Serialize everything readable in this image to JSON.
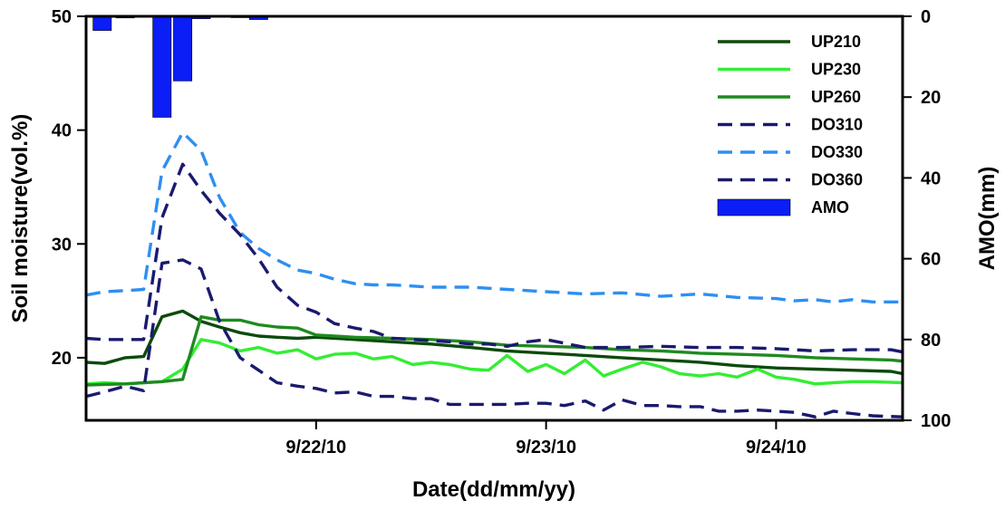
{
  "chart_data": {
    "type": "line",
    "title": "",
    "xlabel": "Date(dd/mm/yy)",
    "ylabel": "Soil moisture(vol.%)",
    "y2label": "AMO(mm)",
    "x_unit": "day",
    "xlim": [
      21.0,
      24.55
    ],
    "ylim": [
      14.5,
      50
    ],
    "y2lim": [
      0,
      100
    ],
    "y2_inverted": true,
    "x_ticks": [
      {
        "x": 22,
        "label": "9/22/10"
      },
      {
        "x": 23,
        "label": "9/23/10"
      },
      {
        "x": 24,
        "label": "9/24/10"
      }
    ],
    "y_ticks": [
      {
        "y": 20,
        "label": "20"
      },
      {
        "y": 30,
        "label": "30"
      },
      {
        "y": 40,
        "label": "40"
      },
      {
        "y": 50,
        "label": "50"
      }
    ],
    "y2_ticks": [
      {
        "y": 0,
        "label": "0"
      },
      {
        "y": 20,
        "label": "20"
      },
      {
        "y": 40,
        "label": "40"
      },
      {
        "y": 60,
        "label": "60"
      },
      {
        "y": 80,
        "label": "80"
      },
      {
        "y": 100,
        "label": "100"
      }
    ],
    "legend_position": "top-right",
    "grid": false,
    "series": [
      {
        "name": "UP210",
        "color": "#0d4a0d",
        "dash": "solid",
        "x": [
          21.0,
          21.08,
          21.17,
          21.25,
          21.33,
          21.42,
          21.5,
          21.58,
          21.67,
          21.75,
          21.83,
          21.92,
          22.0,
          22.17,
          22.33,
          22.5,
          22.67,
          22.83,
          23.0,
          23.17,
          23.33,
          23.5,
          23.67,
          23.83,
          24.0,
          24.17,
          24.33,
          24.5,
          24.55
        ],
        "y": [
          19.6,
          19.5,
          20.0,
          20.1,
          23.6,
          24.1,
          23.2,
          22.7,
          22.2,
          21.9,
          21.8,
          21.7,
          21.8,
          21.6,
          21.4,
          21.2,
          20.9,
          20.6,
          20.4,
          20.2,
          20.0,
          19.8,
          19.6,
          19.3,
          19.1,
          19.0,
          18.9,
          18.8,
          18.6
        ]
      },
      {
        "name": "UP230",
        "color": "#33ee33",
        "dash": "solid",
        "x": [
          21.0,
          21.08,
          21.17,
          21.25,
          21.33,
          21.42,
          21.5,
          21.58,
          21.67,
          21.75,
          21.83,
          21.92,
          22.0,
          22.08,
          22.17,
          22.25,
          22.33,
          22.42,
          22.5,
          22.58,
          22.67,
          22.75,
          22.83,
          22.92,
          23.0,
          23.08,
          23.17,
          23.25,
          23.33,
          23.42,
          23.5,
          23.58,
          23.67,
          23.75,
          23.83,
          23.92,
          24.0,
          24.08,
          24.17,
          24.25,
          24.33,
          24.42,
          24.55
        ],
        "y": [
          17.7,
          17.8,
          17.7,
          17.8,
          17.9,
          19.0,
          21.6,
          21.3,
          20.6,
          20.9,
          20.4,
          20.7,
          19.9,
          20.3,
          20.4,
          19.9,
          20.1,
          19.4,
          19.6,
          19.4,
          19.0,
          18.9,
          20.2,
          18.8,
          19.4,
          18.6,
          19.8,
          18.4,
          19.0,
          19.6,
          19.2,
          18.6,
          18.4,
          18.6,
          18.3,
          19.0,
          18.3,
          18.1,
          17.7,
          17.8,
          17.9,
          17.9,
          17.8
        ]
      },
      {
        "name": "UP260",
        "color": "#1f8a1f",
        "dash": "solid",
        "x": [
          21.0,
          21.17,
          21.33,
          21.42,
          21.5,
          21.58,
          21.67,
          21.75,
          21.83,
          21.92,
          22.0,
          22.17,
          22.33,
          22.5,
          22.67,
          22.83,
          23.0,
          23.17,
          23.33,
          23.5,
          23.67,
          23.83,
          24.0,
          24.17,
          24.33,
          24.5,
          24.55
        ],
        "y": [
          17.6,
          17.7,
          17.9,
          18.1,
          23.6,
          23.3,
          23.3,
          22.9,
          22.7,
          22.6,
          22.0,
          21.8,
          21.7,
          21.6,
          21.4,
          21.1,
          21.0,
          20.9,
          20.7,
          20.6,
          20.4,
          20.3,
          20.2,
          20.0,
          19.9,
          19.8,
          19.7
        ]
      },
      {
        "name": "DO310",
        "color": "#1a1a6e",
        "dash": "dashed",
        "x": [
          21.0,
          21.08,
          21.17,
          21.25,
          21.33,
          21.42,
          21.5,
          21.58,
          21.67,
          21.75,
          21.83,
          21.92,
          22.0,
          22.08,
          22.17,
          22.25,
          22.33,
          22.42,
          22.5,
          22.58,
          22.67,
          22.75,
          22.83,
          22.92,
          23.0,
          23.08,
          23.17,
          23.25,
          23.33,
          23.42,
          23.5,
          23.58,
          23.67,
          23.75,
          23.83,
          23.92,
          24.0,
          24.08,
          24.17,
          24.25,
          24.33,
          24.42,
          24.55
        ],
        "y": [
          16.6,
          17.0,
          17.5,
          17.1,
          28.3,
          28.6,
          27.8,
          23.2,
          20.0,
          18.9,
          17.8,
          17.5,
          17.3,
          16.9,
          17.0,
          16.6,
          16.6,
          16.4,
          16.4,
          15.9,
          15.9,
          15.9,
          15.9,
          16.0,
          16.0,
          15.8,
          16.2,
          15.4,
          16.3,
          15.8,
          15.8,
          15.7,
          15.7,
          15.3,
          15.3,
          15.4,
          15.3,
          15.2,
          14.8,
          15.3,
          15.1,
          14.9,
          14.8
        ]
      },
      {
        "name": "DO330",
        "color": "#2e8ff0",
        "dash": "dashed",
        "x": [
          21.0,
          21.08,
          21.17,
          21.25,
          21.33,
          21.42,
          21.5,
          21.58,
          21.67,
          21.75,
          21.83,
          21.92,
          22.0,
          22.08,
          22.17,
          22.25,
          22.33,
          22.5,
          22.67,
          22.83,
          23.0,
          23.17,
          23.33,
          23.5,
          23.67,
          23.83,
          24.0,
          24.08,
          24.17,
          24.25,
          24.33,
          24.42,
          24.55
        ],
        "y": [
          25.5,
          25.8,
          25.9,
          26.0,
          36.4,
          39.8,
          38.2,
          34.1,
          31.0,
          29.6,
          28.6,
          27.7,
          27.4,
          26.9,
          26.5,
          26.4,
          26.4,
          26.2,
          26.2,
          26.0,
          25.8,
          25.6,
          25.7,
          25.4,
          25.6,
          25.3,
          25.2,
          25.0,
          25.1,
          24.9,
          25.1,
          24.9,
          24.9
        ]
      },
      {
        "name": "DO360",
        "color": "#1a1a6e",
        "dash": "dashed",
        "x": [
          21.0,
          21.08,
          21.17,
          21.25,
          21.33,
          21.42,
          21.5,
          21.58,
          21.67,
          21.75,
          21.83,
          21.92,
          22.0,
          22.08,
          22.17,
          22.25,
          22.33,
          22.42,
          22.5,
          22.58,
          22.67,
          22.75,
          22.83,
          22.92,
          23.0,
          23.17,
          23.33,
          23.5,
          23.67,
          23.83,
          24.0,
          24.17,
          24.33,
          24.5,
          24.55
        ],
        "y": [
          21.7,
          21.6,
          21.6,
          21.6,
          32.3,
          37.0,
          34.7,
          32.7,
          30.8,
          28.7,
          26.2,
          24.6,
          24.0,
          23.0,
          22.6,
          22.3,
          21.7,
          21.6,
          21.5,
          21.4,
          21.2,
          21.2,
          21.0,
          21.4,
          21.6,
          20.9,
          20.9,
          21.0,
          20.9,
          20.9,
          20.8,
          20.6,
          20.7,
          20.7,
          20.5
        ]
      }
    ],
    "bars": {
      "name": "AMO",
      "color": "#0a1ef5",
      "axis": "y2",
      "x": [
        21.07,
        21.17,
        21.33,
        21.42,
        21.5,
        21.67,
        21.75
      ],
      "values": [
        3.5,
        0.4,
        25,
        16,
        0.6,
        0.3,
        0.8
      ],
      "width": 0.08
    }
  }
}
